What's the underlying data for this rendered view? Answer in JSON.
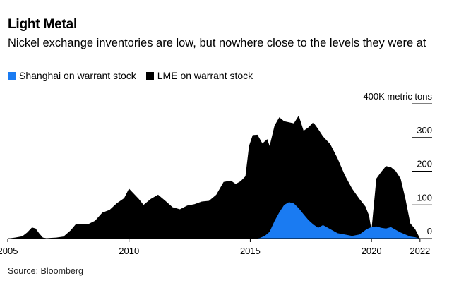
{
  "chart_data": {
    "type": "area",
    "title": "Light Metal",
    "subtitle": "Nickel exchange inventories are low, but nowhere close to the levels they were at",
    "ylabel_unit": "metric tons",
    "ylim": [
      0,
      400
    ],
    "xlim": [
      2005,
      2022.5
    ],
    "y_ticks": [
      0,
      100,
      200,
      300,
      400
    ],
    "y_tick_labels": [
      "0",
      "100",
      "200",
      "300",
      "400K metric tons"
    ],
    "x_ticks": [
      2005,
      2010,
      2015,
      2020,
      2022
    ],
    "x_tick_labels": [
      "2005",
      "2010",
      "2015",
      "2020",
      "2022"
    ],
    "legend": [
      {
        "name": "Shanghai on warrant stock",
        "color": "#1a7bf2"
      },
      {
        "name": "LME on warrant stock",
        "color": "#000000"
      }
    ],
    "series": [
      {
        "name": "LME on warrant stock",
        "color": "#000000",
        "x": [
          2005.0,
          2005.3,
          2005.6,
          2005.8,
          2006.0,
          2006.15,
          2006.3,
          2006.45,
          2006.6,
          2006.8,
          2007.0,
          2007.3,
          2007.6,
          2007.8,
          2008.0,
          2008.3,
          2008.6,
          2008.9,
          2009.2,
          2009.5,
          2009.8,
          2010.0,
          2010.2,
          2010.4,
          2010.6,
          2010.9,
          2011.2,
          2011.5,
          2011.8,
          2012.1,
          2012.4,
          2012.7,
          2013.0,
          2013.3,
          2013.6,
          2013.9,
          2014.2,
          2014.4,
          2014.6,
          2014.8,
          2014.95,
          2015.1,
          2015.3,
          2015.5,
          2015.7,
          2015.8,
          2016.0,
          2016.2,
          2016.4,
          2016.6,
          2016.8,
          2017.0,
          2017.2,
          2017.4,
          2017.6,
          2017.8,
          2018.0,
          2018.3,
          2018.6,
          2018.9,
          2019.2,
          2019.5,
          2019.75,
          2019.9,
          2020.0,
          2020.2,
          2020.4,
          2020.6,
          2020.8,
          2021.0,
          2021.2,
          2021.4,
          2021.6,
          2021.8,
          2022.0
        ],
        "values": [
          0,
          3,
          7,
          18,
          33,
          30,
          15,
          3,
          1,
          2,
          3,
          6,
          25,
          42,
          43,
          42,
          53,
          77,
          85,
          105,
          120,
          148,
          133,
          118,
          100,
          118,
          130,
          112,
          93,
          87,
          98,
          102,
          110,
          112,
          130,
          168,
          172,
          162,
          170,
          185,
          275,
          307,
          308,
          282,
          295,
          275,
          335,
          360,
          348,
          345,
          342,
          365,
          320,
          330,
          345,
          325,
          303,
          280,
          238,
          188,
          148,
          118,
          95,
          68,
          25,
          178,
          198,
          215,
          212,
          200,
          178,
          118,
          45,
          28,
          0
        ]
      },
      {
        "name": "Shanghai on warrant stock",
        "color": "#1a7bf2",
        "x": [
          2015.0,
          2015.2,
          2015.4,
          2015.6,
          2015.8,
          2016.0,
          2016.2,
          2016.4,
          2016.6,
          2016.8,
          2017.0,
          2017.2,
          2017.4,
          2017.6,
          2017.8,
          2018.0,
          2018.3,
          2018.6,
          2018.9,
          2019.2,
          2019.5,
          2019.8,
          2020.0,
          2020.2,
          2020.4,
          2020.6,
          2020.8,
          2021.0,
          2021.2,
          2021.4,
          2021.6,
          2021.8,
          2022.0
        ],
        "values": [
          0,
          0,
          2,
          8,
          20,
          52,
          78,
          100,
          108,
          104,
          90,
          72,
          55,
          42,
          32,
          40,
          28,
          16,
          12,
          8,
          12,
          28,
          34,
          36,
          32,
          30,
          34,
          26,
          18,
          12,
          6,
          4,
          0
        ]
      }
    ],
    "source": "Source: Bloomberg"
  }
}
